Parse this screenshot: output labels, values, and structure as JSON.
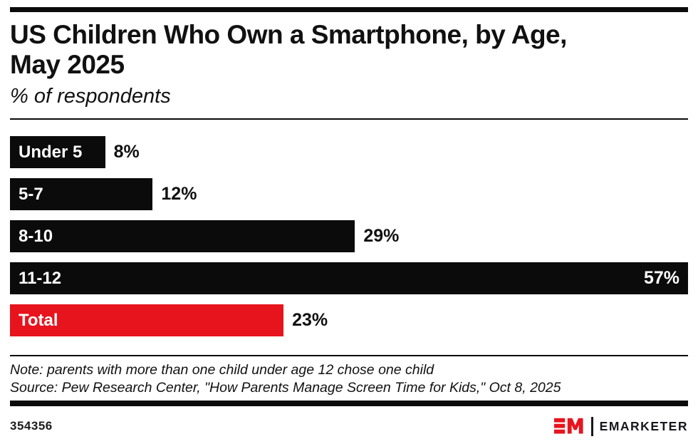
{
  "header": {
    "title_line1": "US Children Who Own a Smartphone, by Age,",
    "title_line2": "May 2025",
    "subtitle": "% of respondents"
  },
  "chart_data": {
    "type": "bar",
    "orientation": "horizontal",
    "title": "US Children Who Own a Smartphone, by Age, May 2025",
    "subtitle": "% of respondents",
    "unit": "%",
    "categories": [
      "Under 5",
      "5-7",
      "8-10",
      "11-12",
      "Total"
    ],
    "values": [
      8,
      12,
      29,
      57,
      23
    ],
    "xlim": [
      0,
      57
    ],
    "grid": false,
    "bars": [
      {
        "label": "Under 5",
        "value": 8,
        "display": "8%",
        "color": "#0b0b0b",
        "value_inside": false
      },
      {
        "label": "5-7",
        "value": 12,
        "display": "12%",
        "color": "#0b0b0b",
        "value_inside": false
      },
      {
        "label": "8-10",
        "value": 29,
        "display": "29%",
        "color": "#0b0b0b",
        "value_inside": false
      },
      {
        "label": "11-12",
        "value": 57,
        "display": "57%",
        "color": "#0b0b0b",
        "value_inside": true
      },
      {
        "label": "Total",
        "value": 23,
        "display": "23%",
        "color": "#e7141d",
        "value_inside": false
      }
    ]
  },
  "colors": {
    "accent_red": "#e7141d",
    "bar_black": "#0b0b0b",
    "text": "#111111"
  },
  "note": "Note: parents with more than one child under age 12 chose one child",
  "source": "Source: Pew Research Center, \"How Parents Manage Screen Time for Kids,\" Oct 8, 2025",
  "footer": {
    "chart_id": "354356",
    "logo_monogram": "EM",
    "brand": "EMARKETER"
  }
}
